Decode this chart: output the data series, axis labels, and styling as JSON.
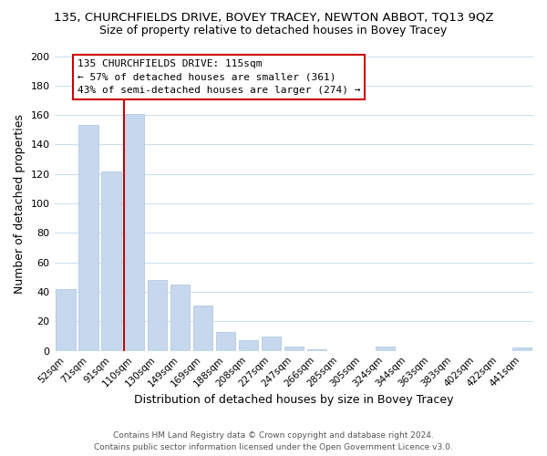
{
  "title": "135, CHURCHFIELDS DRIVE, BOVEY TRACEY, NEWTON ABBOT, TQ13 9QZ",
  "subtitle": "Size of property relative to detached houses in Bovey Tracey",
  "xlabel": "Distribution of detached houses by size in Bovey Tracey",
  "ylabel": "Number of detached properties",
  "bar_labels": [
    "52sqm",
    "71sqm",
    "91sqm",
    "110sqm",
    "130sqm",
    "149sqm",
    "169sqm",
    "188sqm",
    "208sqm",
    "227sqm",
    "247sqm",
    "266sqm",
    "285sqm",
    "305sqm",
    "324sqm",
    "344sqm",
    "363sqm",
    "383sqm",
    "402sqm",
    "422sqm",
    "441sqm"
  ],
  "bar_values": [
    42,
    153,
    122,
    161,
    48,
    45,
    31,
    13,
    7,
    10,
    3,
    1,
    0,
    0,
    3,
    0,
    0,
    0,
    0,
    0,
    2
  ],
  "bar_color": "#c5d8ee",
  "bar_edge_color": "#aac4df",
  "vline_bar_index": 3,
  "vline_color": "#cc0000",
  "ylim": [
    0,
    200
  ],
  "yticks": [
    0,
    20,
    40,
    60,
    80,
    100,
    120,
    140,
    160,
    180,
    200
  ],
  "annotation_title": "135 CHURCHFIELDS DRIVE: 115sqm",
  "annotation_line1": "← 57% of detached houses are smaller (361)",
  "annotation_line2": "43% of semi-detached houses are larger (274) →",
  "footer1": "Contains HM Land Registry data © Crown copyright and database right 2024.",
  "footer2": "Contains public sector information licensed under the Open Government Licence v3.0.",
  "bg_color": "#ffffff",
  "grid_color": "#c8ddf0",
  "title_fontsize": 9.5,
  "subtitle_fontsize": 9,
  "xlabel_fontsize": 9,
  "ylabel_fontsize": 9
}
